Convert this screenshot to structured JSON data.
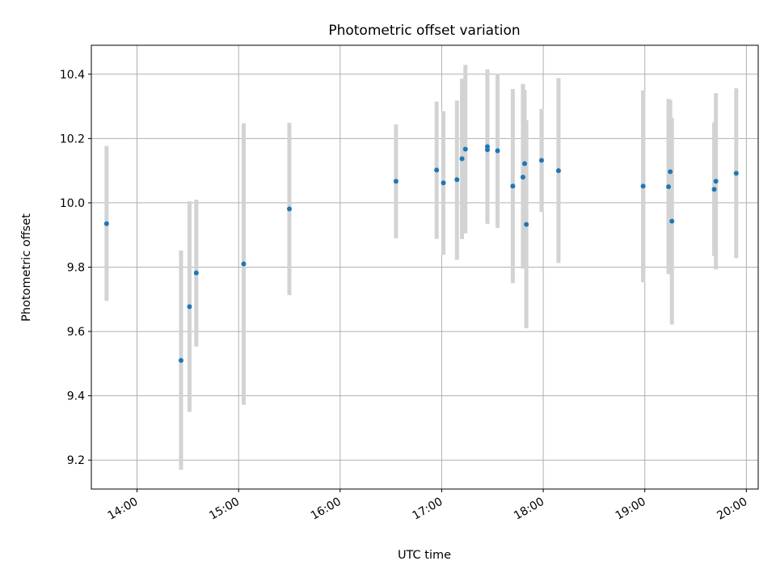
{
  "chart_data": {
    "type": "scatter",
    "title": "Photometric offset variation",
    "xlabel": "UTC time",
    "ylabel": "Photometric offset",
    "xlim": [
      "13:33",
      "20:07"
    ],
    "ylim": [
      9.11,
      10.49
    ],
    "grid": true,
    "x_ticks": [
      "14:00",
      "15:00",
      "16:00",
      "17:00",
      "18:00",
      "19:00",
      "20:00"
    ],
    "y_ticks": [
      9.2,
      9.4,
      9.6,
      9.8,
      10.0,
      10.2,
      10.4
    ],
    "y_tick_labels": [
      "9.2",
      "9.4",
      "9.6",
      "9.8",
      "10.0",
      "10.2",
      "10.4"
    ],
    "marker_color": "#1f77b4",
    "errorbar_color": "#d3d3d3",
    "points": [
      {
        "x": "13:42",
        "y": 9.935,
        "low": 9.695,
        "high": 10.177
      },
      {
        "x": "14:26",
        "y": 9.51,
        "low": 9.17,
        "high": 9.852
      },
      {
        "x": "14:31",
        "y": 9.677,
        "low": 9.35,
        "high": 10.005
      },
      {
        "x": "14:35",
        "y": 9.782,
        "low": 9.553,
        "high": 10.01
      },
      {
        "x": "15:03",
        "y": 9.81,
        "low": 9.372,
        "high": 10.247
      },
      {
        "x": "15:30",
        "y": 9.981,
        "low": 9.713,
        "high": 10.249
      },
      {
        "x": "16:33",
        "y": 10.067,
        "low": 9.89,
        "high": 10.244
      },
      {
        "x": "16:57",
        "y": 10.102,
        "low": 9.888,
        "high": 10.315
      },
      {
        "x": "17:01",
        "y": 10.062,
        "low": 9.838,
        "high": 10.285
      },
      {
        "x": "17:09",
        "y": 10.072,
        "low": 9.823,
        "high": 10.318
      },
      {
        "x": "17:12",
        "y": 10.137,
        "low": 9.887,
        "high": 10.386
      },
      {
        "x": "17:14",
        "y": 10.167,
        "low": 9.905,
        "high": 10.429
      },
      {
        "x": "17:27",
        "y": 10.175,
        "low": 9.935,
        "high": 10.415
      },
      {
        "x": "17:27",
        "y": 10.165,
        "low": 9.935,
        "high": 10.415
      },
      {
        "x": "17:33",
        "y": 10.162,
        "low": 9.922,
        "high": 10.402
      },
      {
        "x": "17:42",
        "y": 10.052,
        "low": 9.75,
        "high": 10.354
      },
      {
        "x": "17:48",
        "y": 10.08,
        "low": 9.795,
        "high": 10.37
      },
      {
        "x": "17:49",
        "y": 10.122,
        "low": 9.893,
        "high": 10.352
      },
      {
        "x": "17:50",
        "y": 9.933,
        "low": 9.61,
        "high": 10.257
      },
      {
        "x": "17:59",
        "y": 10.132,
        "low": 9.972,
        "high": 10.292
      },
      {
        "x": "18:09",
        "y": 10.1,
        "low": 9.813,
        "high": 10.388
      },
      {
        "x": "18:59",
        "y": 10.052,
        "low": 9.753,
        "high": 10.35
      },
      {
        "x": "19:14",
        "y": 10.05,
        "low": 9.778,
        "high": 10.323
      },
      {
        "x": "19:15",
        "y": 10.097,
        "low": 9.873,
        "high": 10.32
      },
      {
        "x": "19:16",
        "y": 9.943,
        "low": 9.622,
        "high": 10.264
      },
      {
        "x": "19:41",
        "y": 10.042,
        "low": 9.835,
        "high": 10.25
      },
      {
        "x": "19:42",
        "y": 10.067,
        "low": 9.793,
        "high": 10.341
      },
      {
        "x": "19:54",
        "y": 10.092,
        "low": 9.828,
        "high": 10.356
      }
    ]
  }
}
